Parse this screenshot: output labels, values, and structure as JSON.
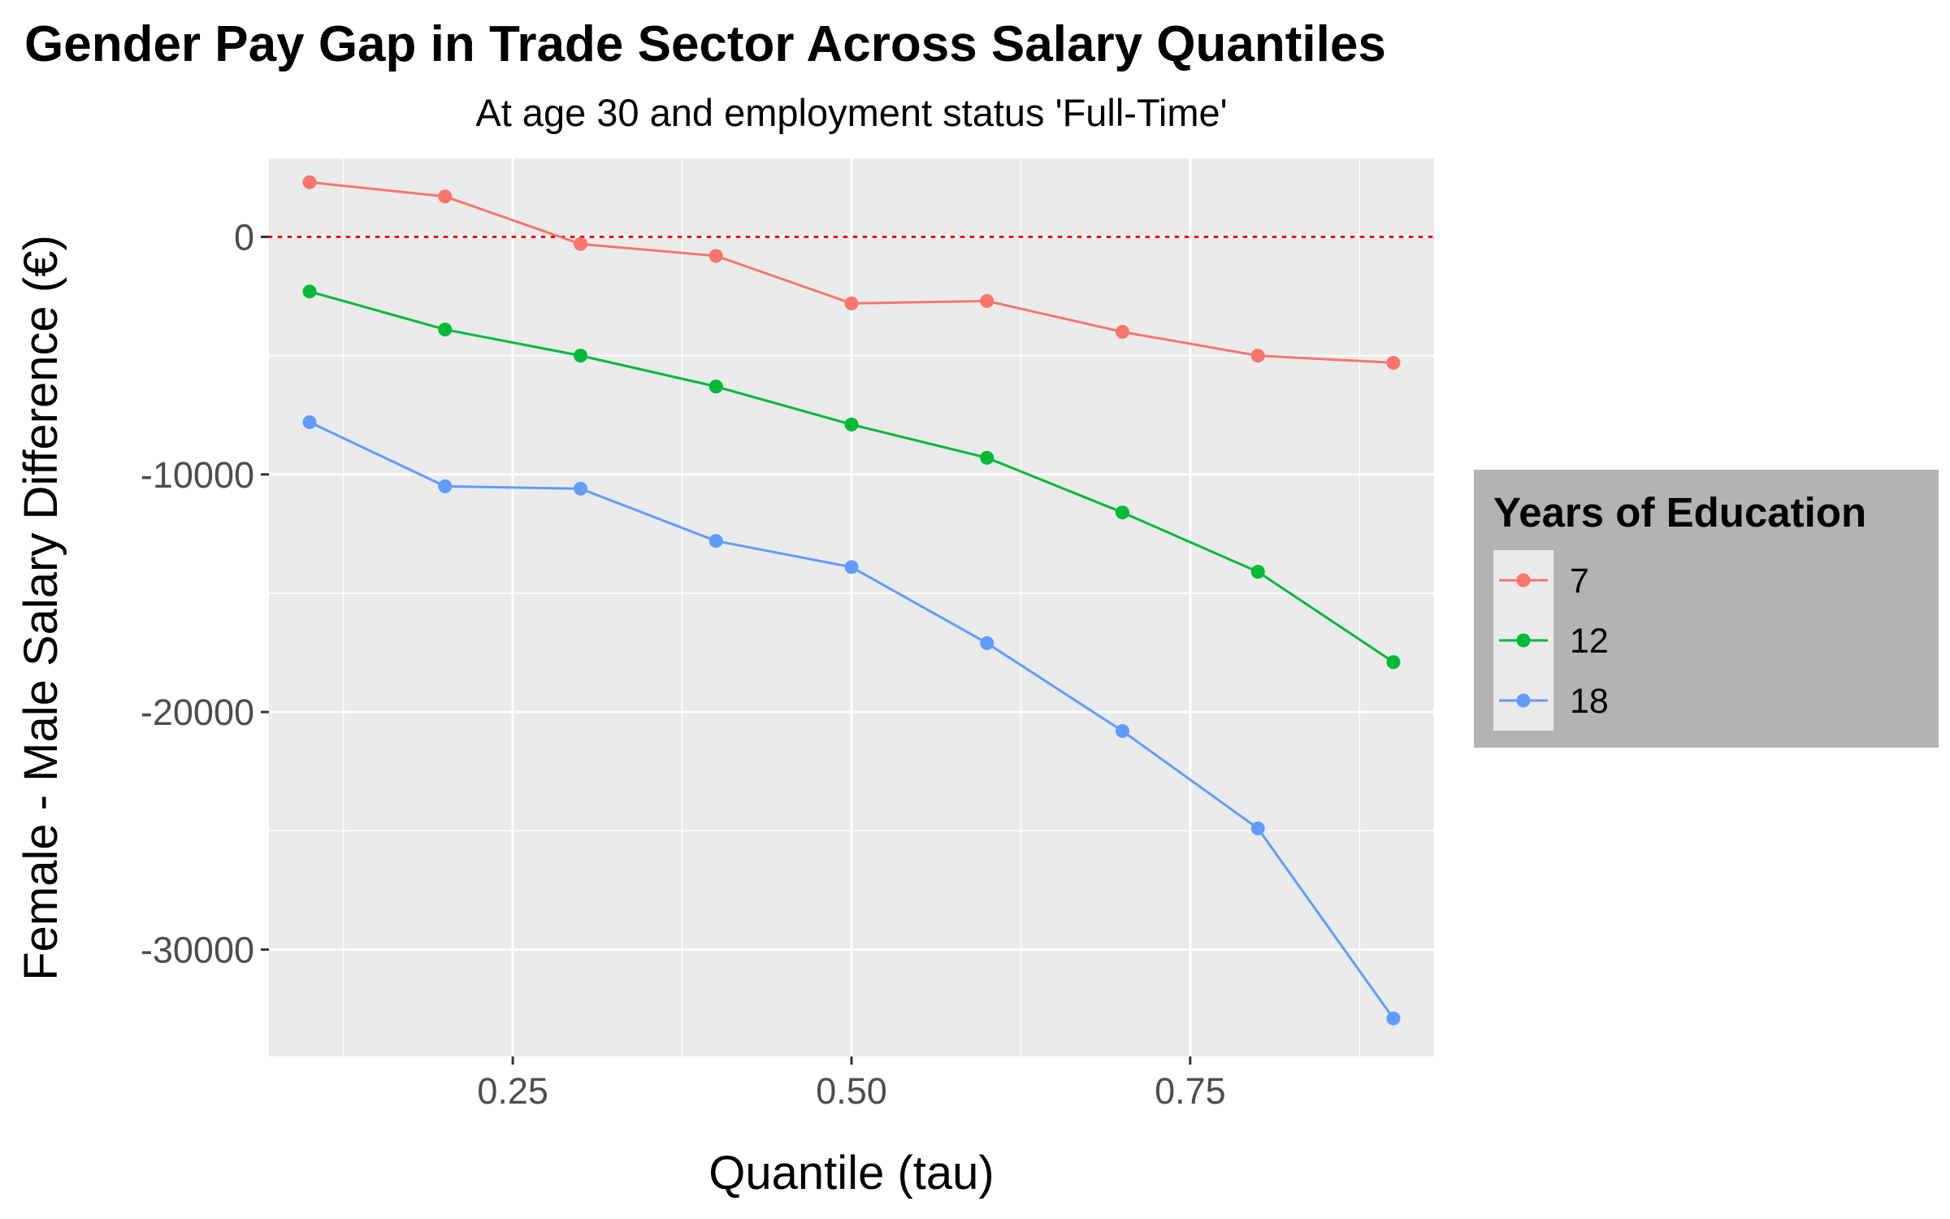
{
  "chart_data": {
    "type": "line",
    "title": "Gender Pay Gap in Trade Sector Across Salary Quantiles",
    "subtitle": "At age 30 and employment status 'Full-Time'",
    "xlabel": "Quantile (tau)",
    "ylabel": "Female - Male Salary Difference (€)",
    "xlim": [
      0.07,
      0.93
    ],
    "ylim": [
      -34500,
      3300
    ],
    "x_ticks": [
      0.25,
      0.5,
      0.75
    ],
    "x_tick_labels": [
      "0.25",
      "0.50",
      "0.75"
    ],
    "y_ticks": [
      0,
      -10000,
      -20000,
      -30000
    ],
    "y_tick_labels": [
      "0",
      "-10000",
      "-20000",
      "-30000"
    ],
    "reference_line": {
      "y": 0,
      "style": "dotted",
      "color": "#ff0000"
    },
    "grid": true,
    "legend": {
      "title": "Years of Education",
      "position": "right"
    },
    "x": [
      0.1,
      0.2,
      0.3,
      0.4,
      0.5,
      0.6,
      0.7,
      0.8,
      0.9
    ],
    "series": [
      {
        "name": "7",
        "color": "#F8766D",
        "values": [
          2300,
          1700,
          -300,
          -800,
          -2800,
          -2700,
          -4000,
          -5000,
          -5300
        ]
      },
      {
        "name": "12",
        "color": "#00BA38",
        "values": [
          -2300,
          -3900,
          -5000,
          -6300,
          -7900,
          -9300,
          -11600,
          -14100,
          -17900
        ]
      },
      {
        "name": "18",
        "color": "#619CFF",
        "values": [
          -7800,
          -10500,
          -10600,
          -12800,
          -13900,
          -17100,
          -20800,
          -24900,
          -32900
        ]
      }
    ]
  }
}
